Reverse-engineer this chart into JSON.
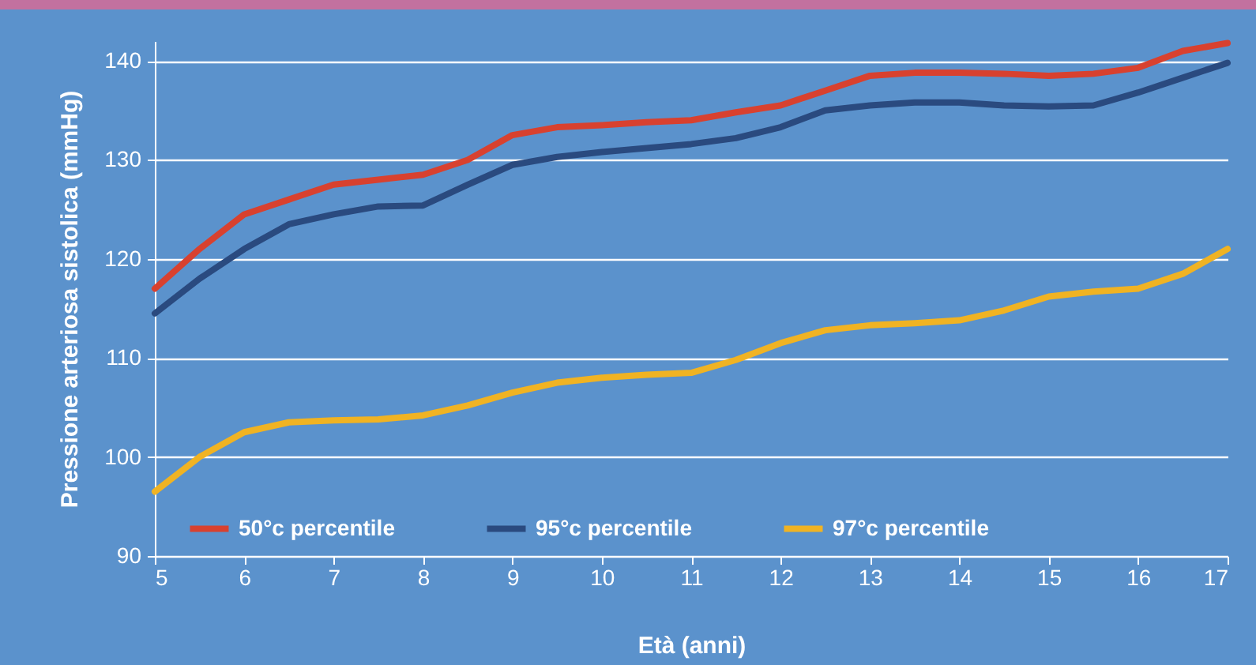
{
  "chart_data": {
    "type": "line",
    "xlabel": "Età (anni)",
    "ylabel": "Pressione arteriosa sistolica (mmHg)",
    "x": [
      5,
      5.5,
      6,
      6.5,
      7,
      7.5,
      8,
      8.5,
      9,
      9.5,
      10,
      10.5,
      11,
      11.5,
      12,
      12.5,
      13,
      13.5,
      14,
      14.5,
      15,
      15.5,
      16,
      16.5,
      17
    ],
    "series": [
      {
        "name": "50°c percentile",
        "color": "#d8412f",
        "values": [
          117,
          121,
          124.5,
          126,
          127.5,
          128,
          128.5,
          130,
          132.5,
          133.3,
          133.5,
          133.8,
          134,
          134.8,
          135.5,
          137,
          138.5,
          138.8,
          138.8,
          138.7,
          138.5,
          138.7,
          139.3,
          141,
          141.8
        ]
      },
      {
        "name": "95°c percentile",
        "color": "#2a4a7f",
        "values": [
          114.5,
          118,
          121,
          123.5,
          124.5,
          125.3,
          125.4,
          127.5,
          129.5,
          130.3,
          130.8,
          131.2,
          131.6,
          132.2,
          133.3,
          135,
          135.5,
          135.8,
          135.8,
          135.5,
          135.4,
          135.5,
          136.8,
          138.3,
          139.8
        ]
      },
      {
        "name": "97°c percentile",
        "color": "#f0b323",
        "values": [
          96.5,
          100,
          102.5,
          103.5,
          103.7,
          103.8,
          104.2,
          105.2,
          106.5,
          107.5,
          108,
          108.3,
          108.5,
          109.8,
          111.5,
          112.8,
          113.3,
          113.5,
          113.8,
          114.8,
          116.2,
          116.7,
          117,
          118.5,
          121
        ]
      }
    ],
    "xlim": [
      5,
      17
    ],
    "xticks": [
      5,
      6,
      7,
      8,
      9,
      10,
      11,
      12,
      13,
      14,
      15,
      16,
      17
    ],
    "ylim": [
      90,
      142
    ],
    "yticks": [
      90,
      100,
      110,
      120,
      130,
      140
    ],
    "grid": "y",
    "legend": "bottom",
    "marker": "none",
    "line_style": "solid"
  }
}
